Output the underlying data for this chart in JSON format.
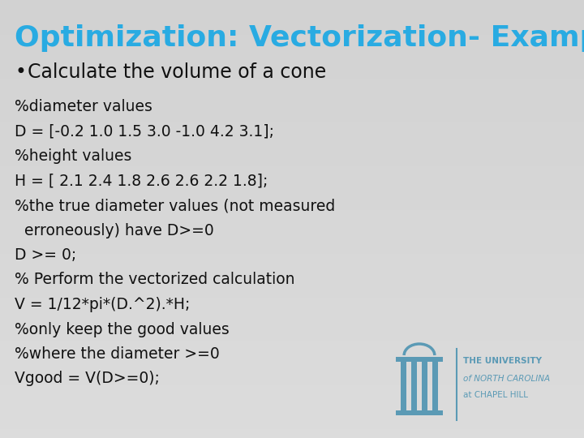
{
  "title": "Optimization: Vectorization- Example",
  "title_color": "#29ABE2",
  "bullet_text": "Calculate the volume of a cone",
  "code_lines": [
    "%diameter values",
    "D = [-0.2 1.0 1.5 3.0 -1.0 4.2 3.1];",
    "%height values",
    "H = [ 2.1 2.4 1.8 2.6 2.6 2.2 1.8];",
    "%the true diameter values (not measured",
    "  erroneously) have D>=0",
    "D >= 0;",
    "% Perform the vectorized calculation",
    "V = 1/12*pi*(D.^2).*H;",
    "%only keep the good values",
    "%where the diameter >=0",
    "Vgood = V(D>=0);"
  ],
  "bg_color": "#DCDCDC",
  "code_color": "#111111",
  "bullet_color": "#111111",
  "unc_text_lines": [
    "THE UNIVERSITY",
    "of NORTH CAROLINA",
    "at CHAPEL HILL"
  ],
  "unc_text_color": "#5B9AB5",
  "divider_color": "#5B9AB5",
  "title_fontsize": 26,
  "bullet_fontsize": 17,
  "code_fontsize": 13.5
}
